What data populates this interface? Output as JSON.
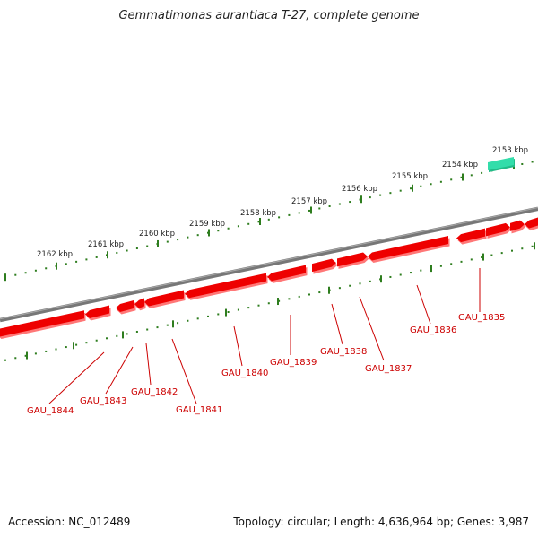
{
  "title": "Gemmatimonas aurantiaca T-27, complete genome",
  "footer": {
    "accession": "Accession: NC_012489",
    "topology": "Topology: circular; Length: 4,636,964 bp; Genes: 3,987"
  },
  "ruler": {
    "color": "#2e7d1e",
    "labels": [
      "2153 kbp",
      "2154 kbp",
      "2155 kbp",
      "2156 kbp",
      "2157 kbp",
      "2158 kbp",
      "2159 kbp",
      "2160 kbp",
      "2161 kbp",
      "2162 kbp"
    ]
  },
  "colors": {
    "backbone": "#777777",
    "gene": "#ee0000",
    "gene_shade": "#ff7777",
    "label": "#cc0000",
    "highlight": "#33ddaa"
  },
  "genes": [
    {
      "id": "GAU_1835"
    },
    {
      "id": "GAU_1836"
    },
    {
      "id": "GAU_1837"
    },
    {
      "id": "GAU_1838"
    },
    {
      "id": "GAU_1839"
    },
    {
      "id": "GAU_1840"
    },
    {
      "id": "GAU_1841"
    },
    {
      "id": "GAU_1842"
    },
    {
      "id": "GAU_1843"
    },
    {
      "id": "GAU_1844"
    }
  ]
}
